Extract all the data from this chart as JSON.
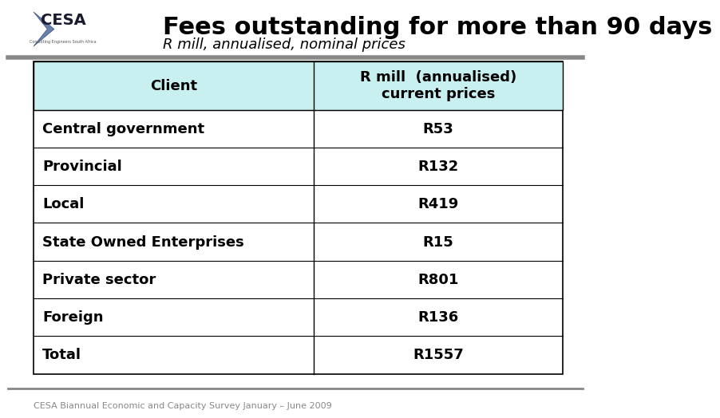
{
  "title": "Fees outstanding for more than 90 days",
  "subtitle": "R mill, annualised, nominal prices",
  "header_col1": "Client",
  "header_col2": "R mill  (annualised)\ncurrent prices",
  "rows": [
    [
      "Central government",
      "R53"
    ],
    [
      "Provincial",
      "R132"
    ],
    [
      "Local",
      "R419"
    ],
    [
      "State Owned Enterprises",
      "R15"
    ],
    [
      "Private sector",
      "R801"
    ],
    [
      "Foreign",
      "R136"
    ],
    [
      "Total",
      "R1557"
    ]
  ],
  "header_bg": "#c8f0f0",
  "row_bg": "#ffffff",
  "border_color": "#000000",
  "separator_color": "#888888",
  "title_color": "#000000",
  "subtitle_color": "#000000",
  "footer_text": "CESA Biannual Economic and Capacity Survey January – June 2009",
  "footer_color": "#888888",
  "bg_color": "#ffffff",
  "title_fontsize": 22,
  "subtitle_fontsize": 13,
  "header_fontsize": 13,
  "cell_fontsize": 13,
  "footer_fontsize": 8
}
